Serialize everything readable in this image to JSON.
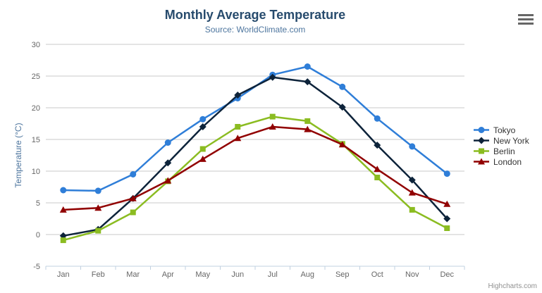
{
  "chart_data": {
    "type": "line",
    "title": "Monthly Average Temperature",
    "subtitle": "Source: WorldClimate.com",
    "categories": [
      "Jan",
      "Feb",
      "Mar",
      "Apr",
      "May",
      "Jun",
      "Jul",
      "Aug",
      "Sep",
      "Oct",
      "Nov",
      "Dec"
    ],
    "xlabel": "",
    "ylabel": "Temperature (°C)",
    "ylim": [
      -5,
      30
    ],
    "ytick_interval": 5,
    "yticks": [
      -5,
      0,
      5,
      10,
      15,
      20,
      25,
      30
    ],
    "grid": true,
    "legend_position": "right",
    "series": [
      {
        "name": "Tokyo",
        "color": "#2f7ed8",
        "marker": "circle",
        "values": [
          7.0,
          6.9,
          9.5,
          14.5,
          18.2,
          21.5,
          25.2,
          26.5,
          23.3,
          18.3,
          13.9,
          9.6
        ]
      },
      {
        "name": "New York",
        "color": "#0d233a",
        "marker": "diamond",
        "values": [
          -0.2,
          0.8,
          5.7,
          11.3,
          17.0,
          22.0,
          24.8,
          24.1,
          20.1,
          14.1,
          8.6,
          2.5
        ]
      },
      {
        "name": "Berlin",
        "color": "#8bbc21",
        "marker": "square",
        "values": [
          -0.9,
          0.6,
          3.5,
          8.4,
          13.5,
          17.0,
          18.6,
          17.9,
          14.3,
          9.0,
          3.9,
          1.0
        ]
      },
      {
        "name": "London",
        "color": "#910000",
        "marker": "triangle",
        "values": [
          3.9,
          4.2,
          5.7,
          8.5,
          11.9,
          15.2,
          17.0,
          16.6,
          14.2,
          10.3,
          6.6,
          4.8
        ]
      }
    ]
  },
  "credits": "Highcharts.com",
  "icons": {
    "context_menu": "hamburger-icon"
  },
  "colors": {
    "title_text": "#274b6d",
    "subtitle_text": "#4d759e",
    "axis_title_text": "#4d759e",
    "tick_label_text": "#666666",
    "grid_line": "#c8c8c8",
    "axis_line": "#c0d0e0",
    "legend_text": "#333333",
    "credits_text": "#909090",
    "menu_icon": "#666666"
  }
}
